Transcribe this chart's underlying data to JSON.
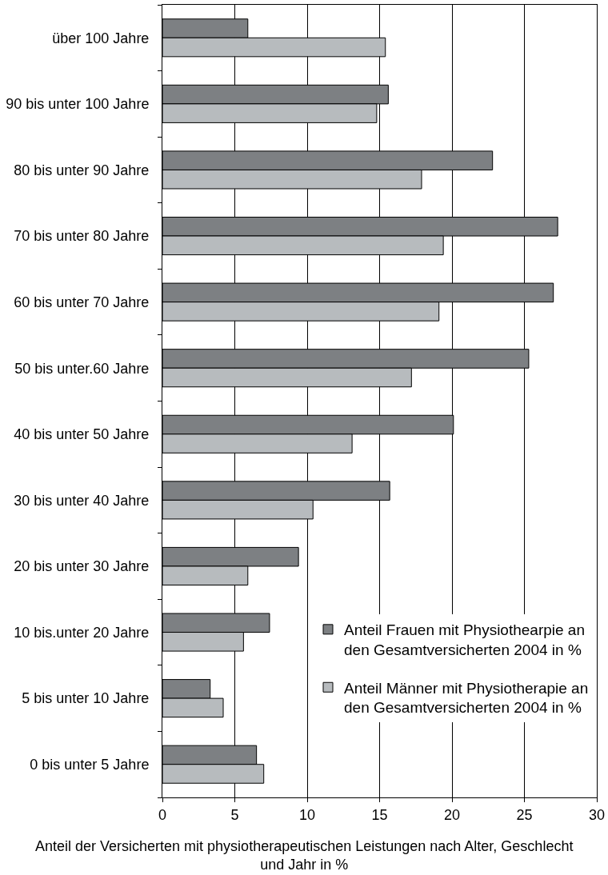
{
  "chart_data": {
    "type": "bar",
    "orientation": "horizontal",
    "xlabel": "Anteil der Versicherten mit physiotherapeutischen Leistungen nach Alter, Geschlecht und Jahr in %",
    "categories": [
      "über 100 Jahre",
      "90 bis unter 100 Jahre",
      "80 bis unter 90 Jahre",
      "70 bis unter 80 Jahre",
      "60 bis unter 70 Jahre",
      "50 bis unter.60 Jahre",
      "40 bis unter 50 Jahre",
      "30 bis unter 40 Jahre",
      "20 bis unter 30 Jahre",
      "10 bis.unter 20 Jahre",
      "5 bis unter 10 Jahre",
      "0 bis unter 5 Jahre"
    ],
    "series": [
      {
        "name": "Anteil Frauen mit Physiothearpie an den Gesamtversicherten 2004 in %",
        "color": "#7d8083",
        "values": [
          5.9,
          15.6,
          22.8,
          27.3,
          27.0,
          25.3,
          20.1,
          15.7,
          9.4,
          7.4,
          3.3,
          6.5
        ]
      },
      {
        "name": "Anteil Männer mit Physiotherapie an den Gesamtversicherten 2004 in %",
        "color": "#b7bbbe",
        "values": [
          15.4,
          14.8,
          17.9,
          19.4,
          19.1,
          17.2,
          13.1,
          10.4,
          5.9,
          5.6,
          4.2,
          7.0
        ]
      }
    ],
    "xlim": [
      0,
      30
    ],
    "xticks": [
      0,
      5,
      10,
      15,
      20,
      25,
      30
    ],
    "grid": "x",
    "legend": "bottom right"
  }
}
